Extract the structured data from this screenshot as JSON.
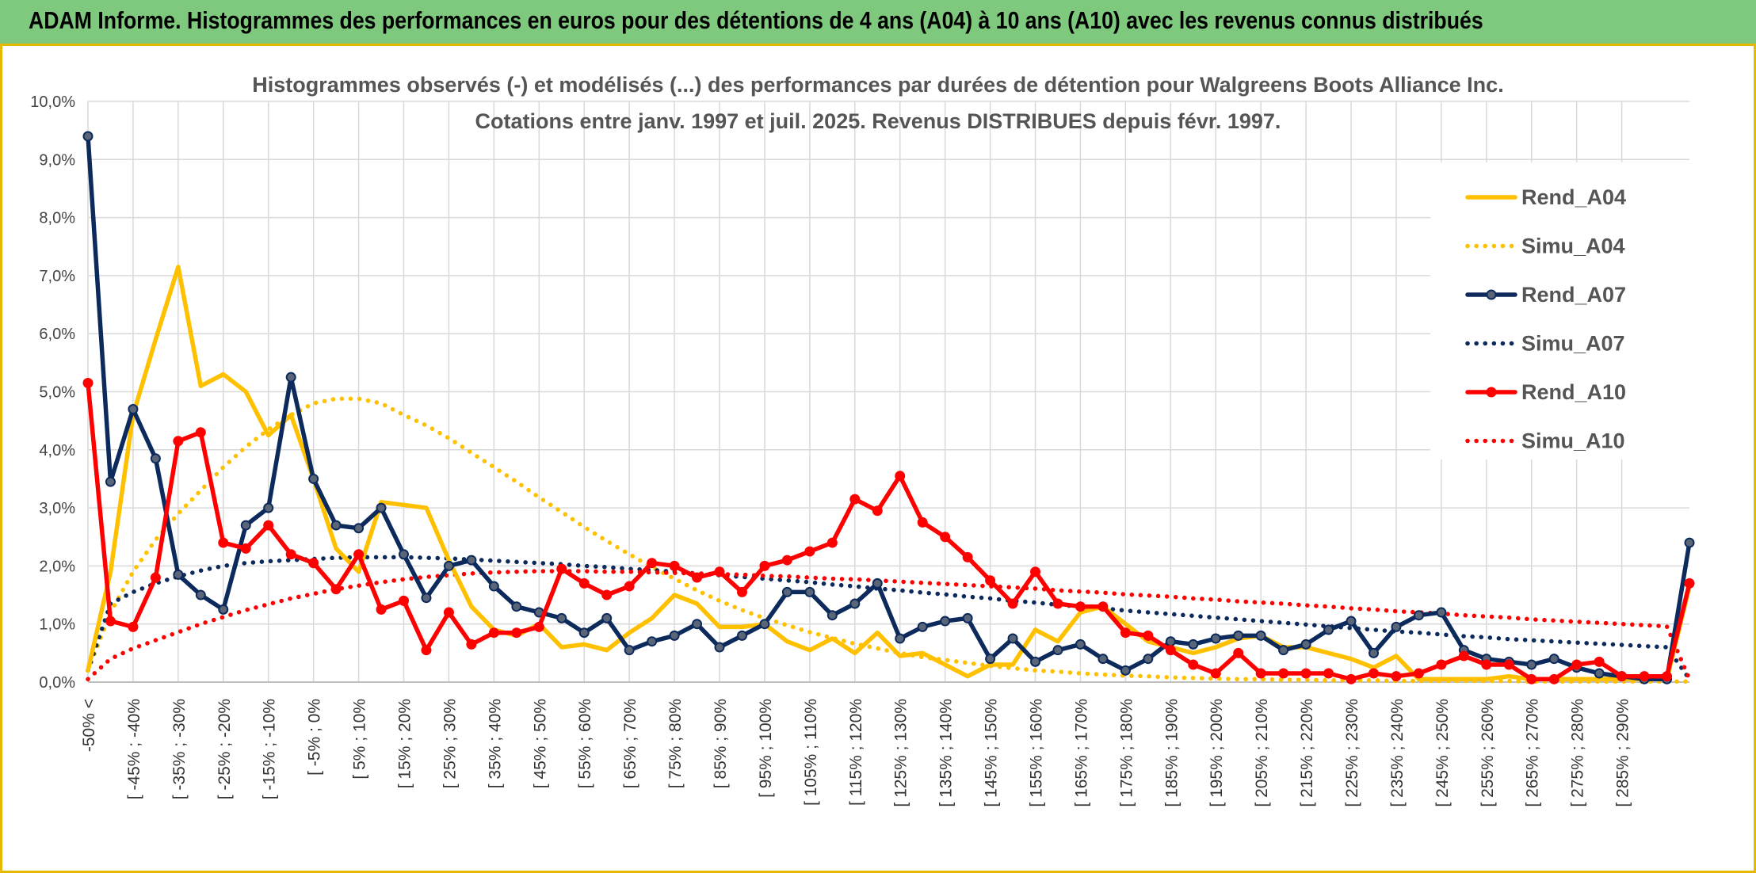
{
  "banner": {
    "title": "ADAM Informe. Histogrammes des performances en euros pour des détentions de 4 ans (A04) à 10 ans (A10) avec les revenus connus distribués"
  },
  "chart_data": {
    "type": "line",
    "title_line1": "Histogrammes observés (-) et modélisés (...) des performances par durées de détention pour Walgreens Boots Alliance Inc.",
    "title_line2": "Cotations entre janv. 1997 et juil. 2025. Revenus DISTRIBUES depuis févr. 1997.",
    "ylim": [
      0,
      10
    ],
    "y_ticks": [
      "0,0%",
      "1,0%",
      "2,0%",
      "3,0%",
      "4,0%",
      "5,0%",
      "6,0%",
      "7,0%",
      "8,0%",
      "9,0%",
      "10,0%"
    ],
    "grid": true,
    "legend_position": "right",
    "x_labels": [
      "-50% <",
      "[ -45% ; -40%",
      "[ -35% ; -30%",
      "[ -25% ; -20%",
      "[ -15% ; -10%",
      "[ -5% ; 0%",
      "[ 5% ; 10%",
      "[ 15% ; 20%",
      "[ 25% ; 30%",
      "[ 35% ; 40%",
      "[ 45% ; 50%",
      "[ 55% ; 60%",
      "[ 65% ; 70%",
      "[ 75% ; 80%",
      "[ 85% ; 90%",
      "[ 95% ; 100%",
      "[ 105% ; 110%",
      "[ 115% ; 120%",
      "[ 125% ; 130%",
      "[ 135% ; 140%",
      "[ 145% ; 150%",
      "[ 155% ; 160%",
      "[ 165% ; 170%",
      "[ 175% ; 180%",
      "[ 185% ; 190%",
      "[ 195% ; 200%",
      "[ 205% ; 210%",
      "[ 215% ; 220%",
      "[ 225% ; 230%",
      "[ 235% ; 240%",
      "[ 245% ; 250%",
      "[ 255% ; 260%",
      "[ 265% ; 270%",
      "[ 275% ; 280%",
      "[ 285% ; 290%"
    ],
    "series": [
      {
        "name": "Rend_A04",
        "color": "#FFC000",
        "style": "solid",
        "markers": false,
        "values": [
          0.2,
          1.9,
          4.6,
          5.9,
          7.15,
          5.1,
          5.3,
          5.0,
          4.25,
          4.6,
          3.5,
          2.3,
          1.9,
          3.1,
          3.05,
          3.0,
          2.1,
          1.3,
          0.9,
          0.8,
          1.0,
          0.6,
          0.65,
          0.55,
          0.85,
          1.1,
          1.5,
          1.35,
          0.95,
          0.95,
          1.0,
          0.7,
          0.55,
          0.75,
          0.5,
          0.85,
          0.45,
          0.5,
          0.3,
          0.1,
          0.3,
          0.3,
          0.9,
          0.7,
          1.2,
          1.3,
          1.0,
          0.7,
          0.6,
          0.5,
          0.6,
          0.75,
          0.8,
          0.6,
          0.6,
          0.5,
          0.4,
          0.25,
          0.45,
          0.05,
          0.05,
          0.05,
          0.05,
          0.1,
          0.05,
          0.05,
          0.05,
          0.05,
          0.05,
          0.05,
          0.05,
          1.65
        ]
      },
      {
        "name": "Simu_A04",
        "color": "#FFC000",
        "style": "dotted",
        "markers": false,
        "values": [
          0.2,
          1.2,
          1.9,
          2.45,
          2.9,
          3.3,
          3.7,
          4.05,
          4.35,
          4.6,
          4.8,
          4.88,
          4.88,
          4.8,
          4.6,
          4.42,
          4.2,
          3.95,
          3.7,
          3.45,
          3.18,
          2.93,
          2.67,
          2.43,
          2.2,
          1.98,
          1.78,
          1.58,
          1.4,
          1.24,
          1.1,
          0.98,
          0.86,
          0.76,
          0.66,
          0.58,
          0.5,
          0.43,
          0.38,
          0.33,
          0.28,
          0.24,
          0.2,
          0.18,
          0.15,
          0.13,
          0.11,
          0.1,
          0.08,
          0.07,
          0.06,
          0.05,
          0.05,
          0.04,
          0.04,
          0.03,
          0.03,
          0.03,
          0.02,
          0.02,
          0.02,
          0.02,
          0.02,
          0.02,
          0.01,
          0.01,
          0.01,
          0.01,
          0.01,
          0.01,
          0.01,
          0.01
        ]
      },
      {
        "name": "Rend_A07",
        "color": "#0D2A5C",
        "style": "solid",
        "markers": true,
        "values": [
          9.4,
          3.45,
          4.7,
          3.85,
          1.85,
          1.5,
          1.25,
          2.7,
          3.0,
          5.25,
          3.5,
          2.7,
          2.65,
          3.0,
          2.2,
          1.45,
          2.0,
          2.1,
          1.65,
          1.3,
          1.2,
          1.1,
          0.85,
          1.1,
          0.55,
          0.7,
          0.8,
          1.0,
          0.6,
          0.8,
          1.0,
          1.55,
          1.55,
          1.15,
          1.35,
          1.7,
          0.75,
          0.95,
          1.05,
          1.1,
          0.4,
          0.75,
          0.35,
          0.55,
          0.65,
          0.4,
          0.2,
          0.4,
          0.7,
          0.65,
          0.75,
          0.8,
          0.8,
          0.55,
          0.65,
          0.9,
          1.05,
          0.5,
          0.95,
          1.15,
          1.2,
          0.55,
          0.4,
          0.35,
          0.3,
          0.4,
          0.25,
          0.15,
          0.1,
          0.05,
          0.05,
          2.4
        ]
      },
      {
        "name": "Simu_A07",
        "color": "#0D2A5C",
        "style": "dotted",
        "markers": false,
        "values": [
          0.2,
          1.35,
          1.55,
          1.7,
          1.82,
          1.92,
          2.0,
          2.05,
          2.08,
          2.1,
          2.12,
          2.14,
          2.15,
          2.15,
          2.15,
          2.14,
          2.13,
          2.11,
          2.09,
          2.07,
          2.05,
          2.03,
          2.0,
          1.98,
          1.95,
          1.93,
          1.9,
          1.87,
          1.84,
          1.81,
          1.78,
          1.75,
          1.72,
          1.68,
          1.65,
          1.61,
          1.58,
          1.54,
          1.51,
          1.47,
          1.44,
          1.4,
          1.37,
          1.33,
          1.3,
          1.27,
          1.23,
          1.2,
          1.17,
          1.14,
          1.11,
          1.08,
          1.05,
          1.02,
          0.99,
          0.96,
          0.93,
          0.9,
          0.87,
          0.85,
          0.82,
          0.79,
          0.77,
          0.74,
          0.72,
          0.7,
          0.68,
          0.66,
          0.64,
          0.62,
          0.6,
          0.05
        ]
      },
      {
        "name": "Rend_A10",
        "color": "#FF0000",
        "style": "solid",
        "markers": true,
        "values": [
          5.15,
          1.05,
          0.95,
          1.8,
          4.15,
          4.3,
          2.4,
          2.3,
          2.7,
          2.2,
          2.05,
          1.6,
          2.2,
          1.25,
          1.4,
          0.55,
          1.2,
          0.65,
          0.85,
          0.85,
          0.95,
          1.95,
          1.7,
          1.5,
          1.65,
          2.05,
          2.0,
          1.8,
          1.9,
          1.55,
          2.0,
          2.1,
          2.25,
          2.4,
          3.15,
          2.95,
          3.55,
          2.75,
          2.5,
          2.15,
          1.75,
          1.35,
          1.9,
          1.35,
          1.3,
          1.3,
          0.85,
          0.8,
          0.55,
          0.3,
          0.15,
          0.5,
          0.15,
          0.15,
          0.15,
          0.15,
          0.05,
          0.15,
          0.1,
          0.15,
          0.3,
          0.45,
          0.3,
          0.3,
          0.05,
          0.05,
          0.3,
          0.35,
          0.1,
          0.1,
          0.1,
          1.7
        ]
      },
      {
        "name": "Simu_A10",
        "color": "#FF0000",
        "style": "dotted",
        "markers": false,
        "values": [
          0.05,
          0.4,
          0.58,
          0.72,
          0.86,
          1.0,
          1.12,
          1.24,
          1.34,
          1.44,
          1.52,
          1.6,
          1.66,
          1.72,
          1.77,
          1.81,
          1.84,
          1.87,
          1.89,
          1.9,
          1.91,
          1.91,
          1.91,
          1.9,
          1.9,
          1.89,
          1.88,
          1.87,
          1.86,
          1.85,
          1.83,
          1.82,
          1.8,
          1.78,
          1.77,
          1.75,
          1.73,
          1.71,
          1.69,
          1.67,
          1.65,
          1.63,
          1.61,
          1.58,
          1.56,
          1.54,
          1.51,
          1.49,
          1.47,
          1.44,
          1.42,
          1.39,
          1.37,
          1.35,
          1.32,
          1.3,
          1.27,
          1.25,
          1.22,
          1.2,
          1.18,
          1.15,
          1.13,
          1.11,
          1.08,
          1.06,
          1.04,
          1.02,
          1.0,
          0.98,
          0.96,
          0.05
        ]
      }
    ]
  }
}
